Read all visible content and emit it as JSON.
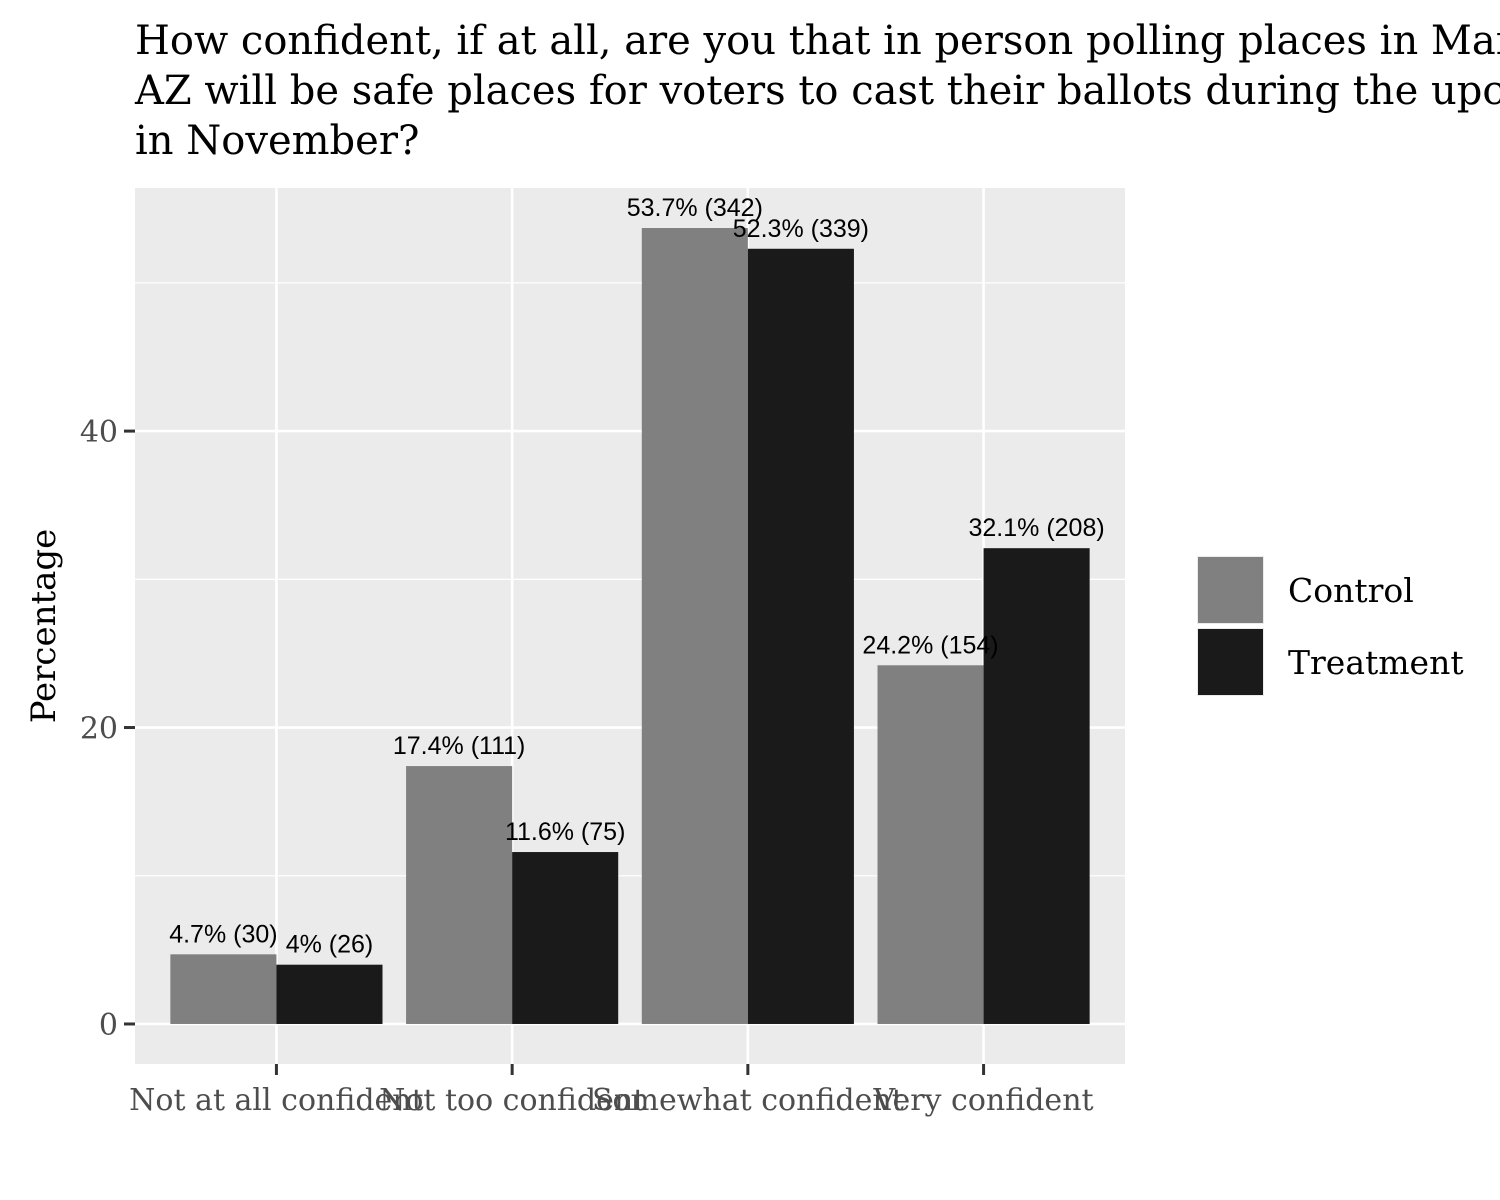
{
  "chart_data": {
    "type": "bar",
    "title_lines": [
      "How confident, if at all, are you that in person polling places in Mar",
      "AZ will be safe places for voters to cast their ballots during the upco",
      "in November?"
    ],
    "xlabel": "",
    "ylabel": "Percentage",
    "categories": [
      "Not at all confident",
      "Not too confident",
      "Somewhat confident",
      "Very confident"
    ],
    "series": [
      {
        "name": "Control",
        "color": "#808080",
        "values": [
          4.7,
          17.4,
          53.7,
          24.2
        ],
        "labels": [
          "4.7% (30)",
          "17.4% (111)",
          "53.7% (342)",
          "24.2% (154)"
        ]
      },
      {
        "name": "Treatment",
        "color": "#1a1a1a",
        "values": [
          4.0,
          11.6,
          52.3,
          32.1
        ],
        "labels": [
          "4% (26)",
          "11.6% (75)",
          "52.3% (339)",
          "32.1% (208)"
        ]
      }
    ],
    "yticks": [
      0,
      20,
      40
    ],
    "ylim": [
      -2.7,
      56.4
    ],
    "grid": true,
    "legend_position": "right",
    "panel_color": "#ebebeb",
    "grid_color": "#ffffff"
  }
}
